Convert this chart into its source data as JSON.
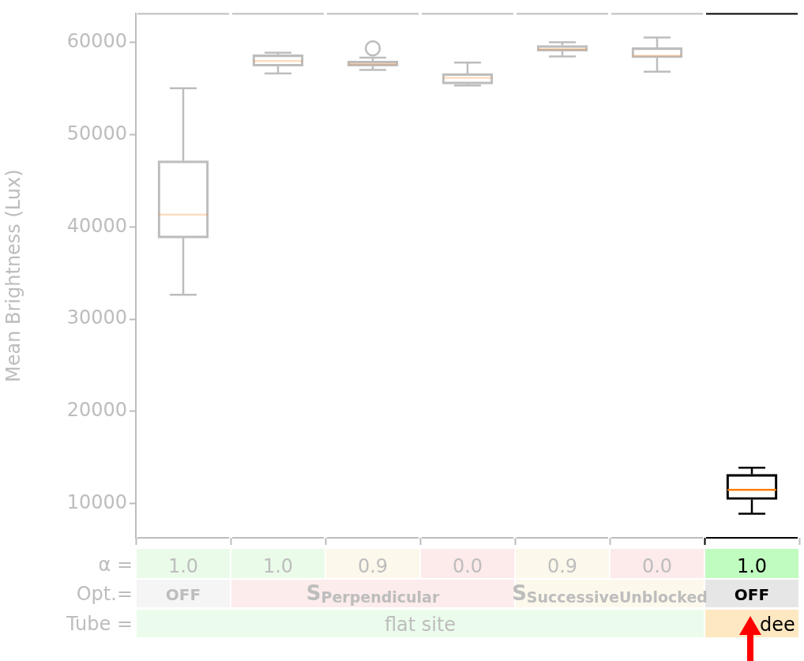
{
  "chart_data": {
    "type": "box",
    "ylabel": "Mean Brightness (Lux)",
    "categories": [
      "1.0",
      "1.0",
      "0.9",
      "0.0",
      "0.9",
      "0.0",
      "1.0"
    ],
    "colors": [
      "#bdbdbd",
      "#bdbdbd",
      "#bdbdbd",
      "#bdbdbd",
      "#bdbdbd",
      "#bdbdbd",
      "#000000"
    ],
    "boxes": [
      {
        "low": 32640,
        "q1": 38800,
        "median": 41330,
        "q3": 47160,
        "high": 55020
      },
      {
        "low": 56620,
        "q1": 57420,
        "median": 57970,
        "q3": 58650,
        "high": 58880
      },
      {
        "low": 57010,
        "q1": 57420,
        "median": 57650,
        "q3": 57970,
        "high": 58350,
        "outliers": [
          59350
        ]
      },
      {
        "low": 55320,
        "q1": 55480,
        "median": 56150,
        "q3": 56620,
        "high": 57800
      },
      {
        "low": 58480,
        "q1": 59030,
        "median": 59270,
        "q3": 59660,
        "high": 60020
      },
      {
        "low": 56820,
        "q1": 58320,
        "median": 58560,
        "q3": 59420,
        "high": 60530
      },
      {
        "low": 8900,
        "q1": 10450,
        "median": 11490,
        "q3": 13180,
        "high": 13890
      }
    ],
    "ylim": [
      6300,
      63100
    ],
    "yticks": [
      10000,
      20000,
      30000,
      40000,
      50000,
      60000
    ],
    "grid": false,
    "legend": false,
    "annotations": [
      "α =",
      "Opt.=",
      "Tube =",
      "OFF",
      "S$_{Perpendicular}$",
      "S$_{SuccessiveUnblocked}$",
      "OFF",
      "flat site",
      "dee"
    ]
  }
}
